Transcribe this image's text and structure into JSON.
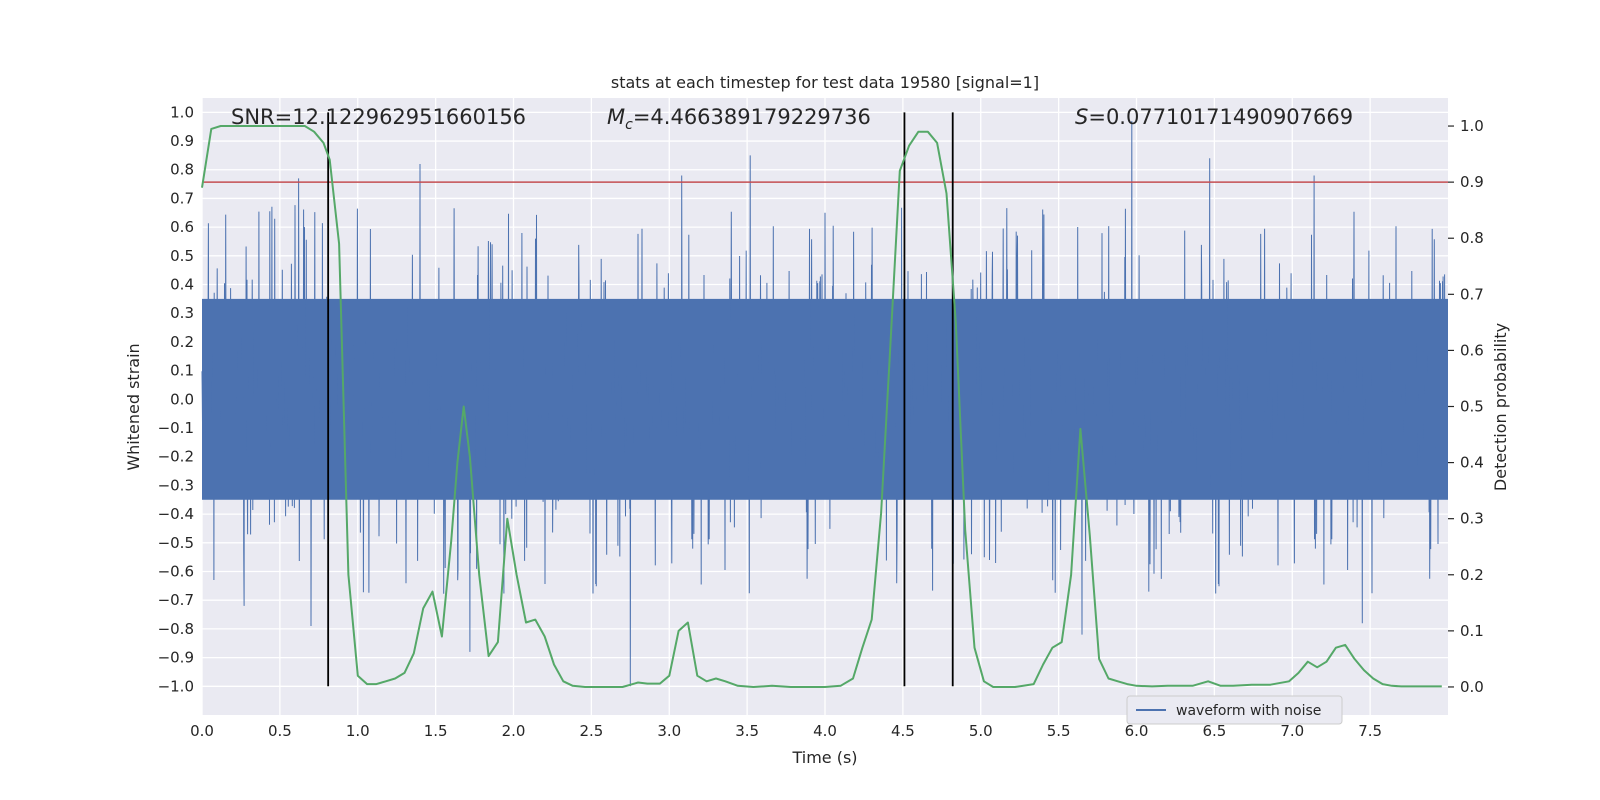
{
  "chart_data": {
    "type": "line",
    "title": "stats at each timestep for test data 19580 [signal=1]",
    "xlabel": "Time (s)",
    "ylabel_left": "Whitened strain",
    "ylabel_right": "Detection probability",
    "xlim": [
      0.0,
      8.0
    ],
    "ylim_left": [
      -1.1,
      1.05
    ],
    "ylim_right": [
      -0.05,
      1.05
    ],
    "grid": true,
    "x_ticks": [
      0.0,
      0.5,
      1.0,
      1.5,
      2.0,
      2.5,
      3.0,
      3.5,
      4.0,
      4.5,
      5.0,
      5.5,
      6.0,
      6.5,
      7.0,
      7.5
    ],
    "x_tick_labels": [
      "0.0",
      "0.5",
      "1.0",
      "1.5",
      "2.0",
      "2.5",
      "3.0",
      "3.5",
      "4.0",
      "4.5",
      "5.0",
      "5.5",
      "6.0",
      "6.5",
      "7.0",
      "7.5"
    ],
    "y_left_ticks": [
      1.0,
      0.9,
      0.8,
      0.7,
      0.6,
      0.5,
      0.4,
      0.3,
      0.2,
      0.1,
      0.0,
      -0.1,
      -0.2,
      -0.3,
      -0.4,
      -0.5,
      -0.6,
      -0.7,
      -0.8,
      -0.9,
      -1.0
    ],
    "y_left_tick_labels": [
      "1.0",
      "0.9",
      "0.8",
      "0.7",
      "0.6",
      "0.5",
      "0.4",
      "0.3",
      "0.2",
      "0.1",
      "0.0",
      "−0.1",
      "−0.2",
      "−0.3",
      "−0.4",
      "−0.5",
      "−0.6",
      "−0.7",
      "−0.8",
      "−0.9",
      "−1.0"
    ],
    "y_right_ticks": [
      1.0,
      0.9,
      0.8,
      0.7,
      0.6,
      0.5,
      0.4,
      0.3,
      0.2,
      0.1,
      0.0
    ],
    "y_right_tick_labels": [
      "1.0",
      "0.9",
      "0.8",
      "0.7",
      "0.6",
      "0.5",
      "0.4",
      "0.3",
      "0.2",
      "0.1",
      "0.0"
    ],
    "annotations": {
      "snr": "SNR=12.122962951660156",
      "mc_symbol": "M",
      "mc_sub": "c",
      "mc_value": "=4.466389179229736",
      "s_symbol": "S",
      "s_value": "=0.07710171490907669"
    },
    "threshold": {
      "value": 0.9,
      "axis": "right",
      "color": "#c44e52"
    },
    "vlines": [
      0.81,
      4.51,
      4.82
    ],
    "vline_range_left": [
      -1.0,
      1.0
    ],
    "waveform": {
      "name": "waveform with noise",
      "color": "#4c72b0",
      "num_samples": 4096,
      "duration": 7.996,
      "core_amplitude": 0.35,
      "spikes": [
        {
          "x": 0.62,
          "y": 0.77
        },
        {
          "x": 0.7,
          "y": -0.79
        },
        {
          "x": 2.75,
          "y": -1.0
        },
        {
          "x": 3.52,
          "y": 0.85
        },
        {
          "x": 5.97,
          "y": 0.97
        },
        {
          "x": 6.47,
          "y": 0.84
        },
        {
          "x": 1.72,
          "y": -0.88
        },
        {
          "x": 4.82,
          "y": -0.78
        },
        {
          "x": 0.27,
          "y": -0.72
        },
        {
          "x": 7.45,
          "y": -0.78
        },
        {
          "x": 7.14,
          "y": 0.78
        },
        {
          "x": 5.65,
          "y": -0.82
        },
        {
          "x": 3.08,
          "y": 0.78
        },
        {
          "x": 1.4,
          "y": 0.82
        },
        {
          "x": 4.0,
          "y": 0.65
        }
      ]
    },
    "probability": {
      "name": "detection probability",
      "color": "#55a868",
      "x": [
        0.0,
        0.06,
        0.12,
        0.2,
        0.3,
        0.4,
        0.5,
        0.6,
        0.66,
        0.72,
        0.78,
        0.82,
        0.88,
        0.94,
        1.0,
        1.06,
        1.12,
        1.18,
        1.24,
        1.3,
        1.36,
        1.42,
        1.48,
        1.54,
        1.6,
        1.64,
        1.68,
        1.72,
        1.78,
        1.84,
        1.9,
        1.96,
        2.02,
        2.08,
        2.14,
        2.2,
        2.26,
        2.32,
        2.38,
        2.46,
        2.56,
        2.7,
        2.8,
        2.86,
        2.94,
        3.0,
        3.06,
        3.12,
        3.18,
        3.24,
        3.3,
        3.36,
        3.44,
        3.54,
        3.66,
        3.78,
        3.9,
        4.0,
        4.1,
        4.18,
        4.24,
        4.3,
        4.36,
        4.42,
        4.48,
        4.54,
        4.6,
        4.66,
        4.72,
        4.78,
        4.84,
        4.9,
        4.96,
        5.02,
        5.08,
        5.14,
        5.22,
        5.34,
        5.4,
        5.46,
        5.52,
        5.58,
        5.64,
        5.7,
        5.76,
        5.82,
        5.88,
        5.94,
        6.0,
        6.1,
        6.2,
        6.36,
        6.46,
        6.54,
        6.62,
        6.74,
        6.86,
        6.98,
        7.04,
        7.1,
        7.16,
        7.22,
        7.28,
        7.34,
        7.4,
        7.46,
        7.52,
        7.58,
        7.64,
        7.7,
        7.8,
        7.9,
        7.96
      ],
      "y": [
        0.89,
        0.995,
        1.0,
        1.0,
        1.0,
        1.0,
        1.0,
        1.0,
        1.0,
        0.99,
        0.97,
        0.94,
        0.79,
        0.2,
        0.02,
        0.005,
        0.005,
        0.01,
        0.015,
        0.025,
        0.06,
        0.14,
        0.17,
        0.09,
        0.26,
        0.4,
        0.5,
        0.41,
        0.2,
        0.055,
        0.08,
        0.3,
        0.2,
        0.115,
        0.12,
        0.09,
        0.04,
        0.01,
        0.002,
        0.0,
        0.0,
        0.0,
        0.008,
        0.006,
        0.006,
        0.02,
        0.1,
        0.115,
        0.02,
        0.01,
        0.015,
        0.01,
        0.002,
        0.0,
        0.002,
        0.0,
        0.0,
        0.0,
        0.002,
        0.015,
        0.07,
        0.12,
        0.31,
        0.61,
        0.92,
        0.965,
        0.99,
        0.99,
        0.97,
        0.88,
        0.65,
        0.28,
        0.07,
        0.01,
        0.0,
        0.0,
        0.0,
        0.005,
        0.04,
        0.07,
        0.08,
        0.2,
        0.46,
        0.27,
        0.05,
        0.015,
        0.01,
        0.005,
        0.002,
        0.001,
        0.002,
        0.002,
        0.01,
        0.002,
        0.002,
        0.004,
        0.004,
        0.01,
        0.025,
        0.045,
        0.035,
        0.045,
        0.07,
        0.075,
        0.05,
        0.03,
        0.015,
        0.005,
        0.002,
        0.001,
        0.001,
        0.001,
        0.001
      ]
    },
    "legend": {
      "label": "waveform with noise",
      "placement": "lower-right"
    }
  }
}
